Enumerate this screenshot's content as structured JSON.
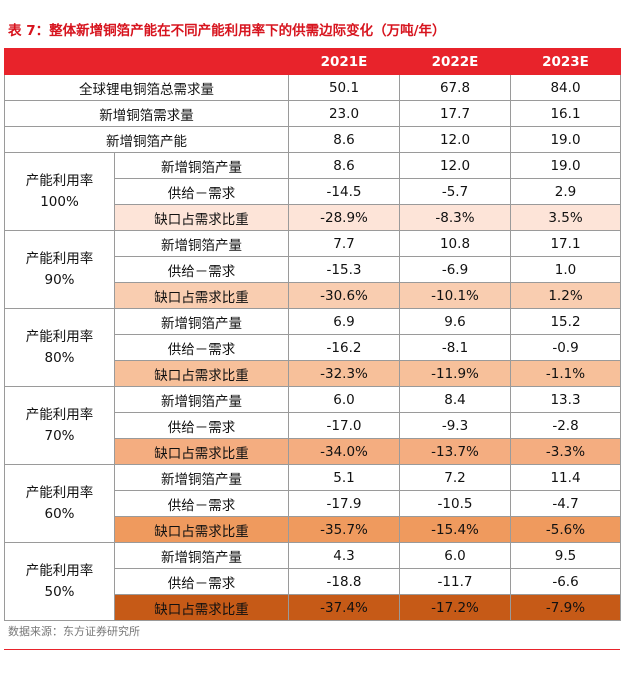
{
  "title": "表 7：整体新增铜箔产能在不同产能利用率下的供需边际变化（万吨/年）",
  "table": {
    "header": [
      "2021E",
      "2022E",
      "2023E"
    ],
    "rows": [
      {
        "label": "全球锂电铜箔总需求量",
        "values": [
          "50.1",
          "67.8",
          "84.0"
        ]
      },
      {
        "label": "新增铜箔需求量",
        "values": [
          "23.0",
          "17.7",
          "16.1"
        ]
      },
      {
        "label": "新增铜箔产能",
        "values": [
          "8.6",
          "12.0",
          "19.0"
        ]
      }
    ],
    "groups": [
      {
        "label": "产能利用率",
        "rate": "100%",
        "rows": [
          {
            "label": "新增铜箔产量",
            "values": [
              "8.6",
              "12.0",
              "19.0"
            ]
          },
          {
            "label": "供给－需求",
            "values": [
              "-14.5",
              "-5.7",
              "2.9"
            ]
          },
          {
            "label": "缺口占需求比重",
            "values": [
              "-28.9%",
              "-8.3%",
              "3.5%"
            ]
          }
        ]
      },
      {
        "label": "产能利用率",
        "rate": "90%",
        "rows": [
          {
            "label": "新增铜箔产量",
            "values": [
              "7.7",
              "10.8",
              "17.1"
            ]
          },
          {
            "label": "供给－需求",
            "values": [
              "-15.3",
              "-6.9",
              "1.0"
            ]
          },
          {
            "label": "缺口占需求比重",
            "values": [
              "-30.6%",
              "-10.1%",
              "1.2%"
            ]
          }
        ]
      },
      {
        "label": "产能利用率",
        "rate": "80%",
        "rows": [
          {
            "label": "新增铜箔产量",
            "values": [
              "6.9",
              "9.6",
              "15.2"
            ]
          },
          {
            "label": "供给－需求",
            "values": [
              "-16.2",
              "-8.1",
              "-0.9"
            ]
          },
          {
            "label": "缺口占需求比重",
            "values": [
              "-32.3%",
              "-11.9%",
              "-1.1%"
            ]
          }
        ]
      },
      {
        "label": "产能利用率",
        "rate": "70%",
        "rows": [
          {
            "label": "新增铜箔产量",
            "values": [
              "6.0",
              "8.4",
              "13.3"
            ]
          },
          {
            "label": "供给－需求",
            "values": [
              "-17.0",
              "-9.3",
              "-2.8"
            ]
          },
          {
            "label": "缺口占需求比重",
            "values": [
              "-34.0%",
              "-13.7%",
              "-3.3%"
            ]
          }
        ]
      },
      {
        "label": "产能利用率",
        "rate": "60%",
        "rows": [
          {
            "label": "新增铜箔产量",
            "values": [
              "5.1",
              "7.2",
              "11.4"
            ]
          },
          {
            "label": "供给－需求",
            "values": [
              "-17.9",
              "-10.5",
              "-4.7"
            ]
          },
          {
            "label": "缺口占需求比重",
            "values": [
              "-35.7%",
              "-15.4%",
              "-5.6%"
            ]
          }
        ]
      },
      {
        "label": "产能利用率",
        "rate": "50%",
        "rows": [
          {
            "label": "新增铜箔产量",
            "values": [
              "4.3",
              "6.0",
              "9.5"
            ]
          },
          {
            "label": "供给－需求",
            "values": [
              "-18.8",
              "-11.7",
              "-6.6"
            ]
          },
          {
            "label": "缺口占需求比重",
            "values": [
              "-37.4%",
              "-17.2%",
              "-7.9%"
            ]
          }
        ]
      }
    ]
  },
  "source": "数据来源：东方证券研究所"
}
